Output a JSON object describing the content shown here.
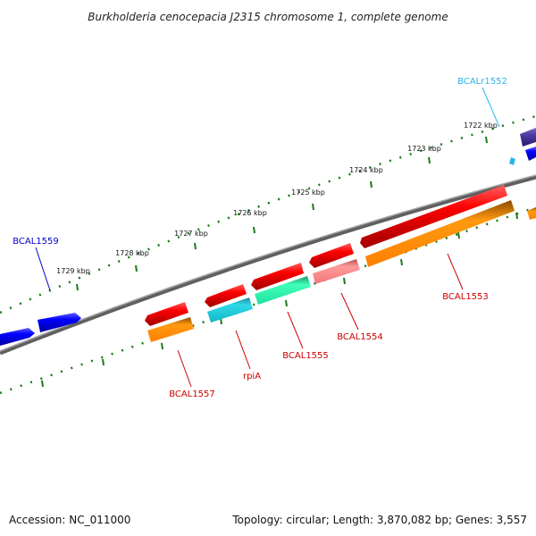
{
  "title": "Burkholderia cenocepacia J2315 chromosome 1, complete genome",
  "footer": {
    "accession": "Accession: NC_011000",
    "summary": "Topology: circular; Length: 3,870,082 bp; Genes: 3,557"
  },
  "scale_ticks": [
    "1722 kbp",
    "1723 kbp",
    "1724 kbp",
    "1725 kbp",
    "1726 kbp",
    "1727 kbp",
    "1728 kbp",
    "1729 kbp"
  ],
  "genes": [
    {
      "name": "BCALr1552",
      "color": "#29b6e6",
      "strand": "forward"
    },
    {
      "name": "BCAL1553",
      "color": "#cc0000",
      "strand": "reverse"
    },
    {
      "name": "BCAL1554",
      "color": "#cc0000",
      "strand": "reverse"
    },
    {
      "name": "BCAL1555",
      "color": "#cc0000",
      "strand": "reverse"
    },
    {
      "name": "rpiA",
      "color": "#cc0000",
      "strand": "reverse"
    },
    {
      "name": "BCAL1557",
      "color": "#cc0000",
      "strand": "reverse"
    },
    {
      "name": "BCAL1559",
      "color": "#0000cc",
      "strand": "forward"
    }
  ],
  "colors": {
    "backbone": "#808080",
    "tick": "#1a7a1a",
    "forward_cds": "#1010e8",
    "reverse_cds": "#e80000",
    "orange_feature": "#ff8c00",
    "teal_feature": "#1ec8d8",
    "green_feature": "#2de8a0",
    "pink_feature": "#f08080",
    "purple_feature": "#4a3aa0"
  }
}
